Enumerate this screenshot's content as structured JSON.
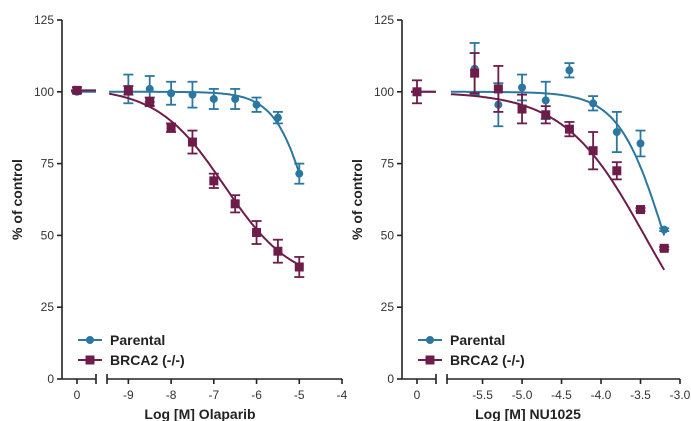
{
  "chart_data": [
    {
      "type": "scatter",
      "xlabel": "Log [M] Olaparib",
      "ylabel": "% of control",
      "ylim": [
        0,
        125
      ],
      "yticks": [
        "0",
        "25",
        "50",
        "75",
        "100",
        "125"
      ],
      "xticks": [
        "0",
        "-9",
        "-8",
        "-7",
        "-6",
        "-5",
        "-4"
      ],
      "xbreak": true,
      "grid": false,
      "legend_position": "bottom-left",
      "series": [
        {
          "name": "Parental",
          "color": "#2b77a0",
          "marker": "circle",
          "points": [
            {
              "x": 0,
              "y": 100,
              "err": 0
            },
            {
              "x": -9,
              "y": 101,
              "err": 5
            },
            {
              "x": -8.5,
              "y": 101,
              "err": 4.5
            },
            {
              "x": -8,
              "y": 99.5,
              "err": 4
            },
            {
              "x": -7.5,
              "y": 99,
              "err": 4.5
            },
            {
              "x": -7,
              "y": 97.5,
              "err": 3.5
            },
            {
              "x": -6.5,
              "y": 97.5,
              "err": 3.5
            },
            {
              "x": -6,
              "y": 95.5,
              "err": 2.5
            },
            {
              "x": -5.5,
              "y": 91,
              "err": 2
            },
            {
              "x": -5,
              "y": 71.5,
              "err": 3.5
            }
          ],
          "fit": {
            "bottom": 0,
            "top": 100,
            "log_ec50": -4.6,
            "hill": 1.0
          }
        },
        {
          "name": "BRCA2 (-/-)",
          "color": "#6e1d4a",
          "marker": "square",
          "points": [
            {
              "x": 0,
              "y": 100.5,
              "err": 1
            },
            {
              "x": -9,
              "y": 100.5,
              "err": 1.5
            },
            {
              "x": -8.5,
              "y": 96.5,
              "err": 1.5
            },
            {
              "x": -8,
              "y": 87.5,
              "err": 1.5
            },
            {
              "x": -7.5,
              "y": 82.5,
              "err": 4
            },
            {
              "x": -7,
              "y": 69,
              "err": 2.5
            },
            {
              "x": -6.5,
              "y": 61,
              "err": 3
            },
            {
              "x": -6,
              "y": 51,
              "err": 4
            },
            {
              "x": -5.5,
              "y": 44.5,
              "err": 4
            },
            {
              "x": -5,
              "y": 39,
              "err": 3.5
            }
          ],
          "fit": {
            "bottom": 33,
            "top": 101.5,
            "log_ec50": -6.75,
            "hill": 0.55
          }
        }
      ]
    },
    {
      "type": "scatter",
      "xlabel": "Log [M] NU1025",
      "ylabel": "% of control",
      "ylim": [
        0,
        125
      ],
      "yticks": [
        "0",
        "25",
        "50",
        "75",
        "100",
        "125"
      ],
      "xticks": [
        "0",
        "-5.5",
        "-5.0",
        "-4.5",
        "-4.0",
        "-3.5",
        "-3.0"
      ],
      "xbreak": true,
      "grid": false,
      "legend_position": "bottom-left",
      "series": [
        {
          "name": "Parental",
          "color": "#2b77a0",
          "marker": "circle",
          "points": [
            {
              "x": 0,
              "y": 100,
              "err": 0
            },
            {
              "x": -5.6,
              "y": 108,
              "err": 9
            },
            {
              "x": -5.3,
              "y": 95.5,
              "err": 7.5
            },
            {
              "x": -5.0,
              "y": 101.5,
              "err": 4.5
            },
            {
              "x": -4.7,
              "y": 97,
              "err": 6.5
            },
            {
              "x": -4.4,
              "y": 107.5,
              "err": 2.5
            },
            {
              "x": -4.1,
              "y": 96,
              "err": 2.5
            },
            {
              "x": -3.8,
              "y": 86,
              "err": 7
            },
            {
              "x": -3.5,
              "y": 82,
              "err": 4.5
            },
            {
              "x": -3.2,
              "y": 52,
              "err": 0.5
            }
          ],
          "fit": {
            "bottom": 0,
            "top": 100,
            "log_ec50": -3.2,
            "hill": 1.5
          }
        },
        {
          "name": "BRCA2 (-/-)",
          "color": "#6e1d4a",
          "marker": "square",
          "points": [
            {
              "x": 0,
              "y": 100,
              "err": 4
            },
            {
              "x": -5.6,
              "y": 106.5,
              "err": 7
            },
            {
              "x": -5.3,
              "y": 101,
              "err": 8
            },
            {
              "x": -5.0,
              "y": 94,
              "err": 5
            },
            {
              "x": -4.7,
              "y": 92,
              "err": 3
            },
            {
              "x": -4.4,
              "y": 87,
              "err": 2.5
            },
            {
              "x": -4.1,
              "y": 79.5,
              "err": 6.5
            },
            {
              "x": -3.8,
              "y": 72.5,
              "err": 3
            },
            {
              "x": -3.5,
              "y": 59,
              "err": 0.5
            },
            {
              "x": -3.2,
              "y": 45.5,
              "err": 0.5
            }
          ],
          "fit": {
            "bottom": 0,
            "top": 100,
            "log_ec50": -3.45,
            "hill": 0.85
          }
        }
      ]
    }
  ]
}
